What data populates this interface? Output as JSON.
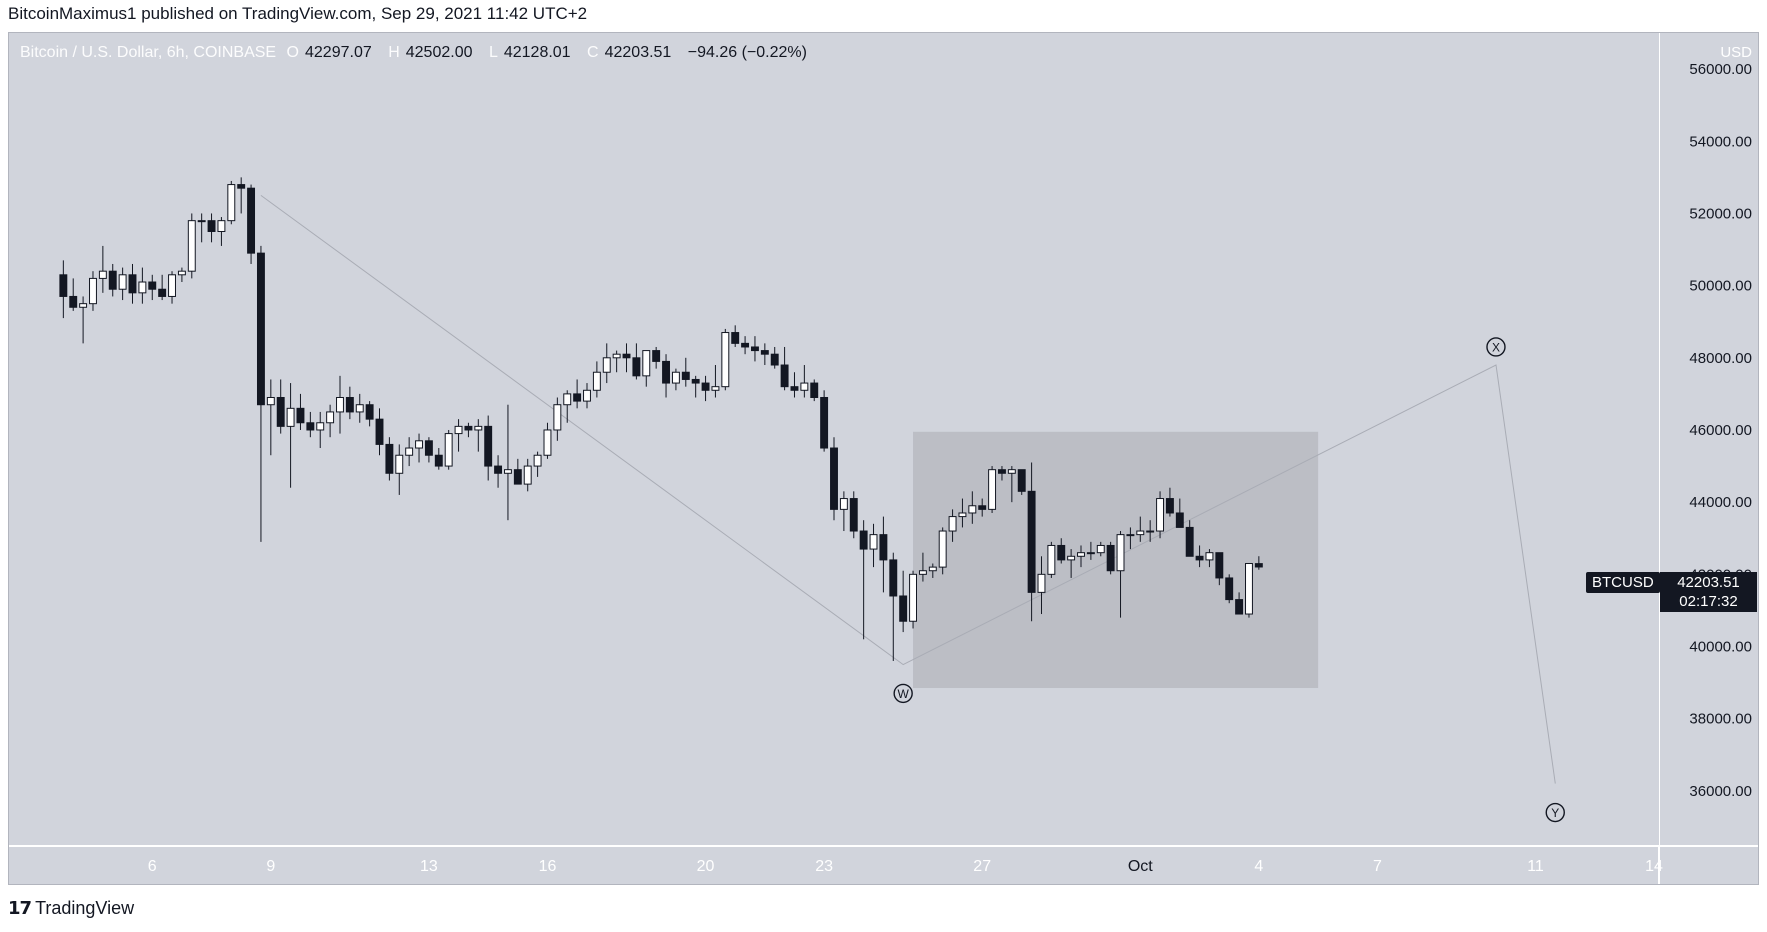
{
  "publisher_line": "BitcoinMaximus1 published on TradingView.com, Sep 29, 2021 11:42 UTC+2",
  "legend": {
    "symbol": "Bitcoin / U.S. Dollar, 6h, COINBASE",
    "o_label": "O",
    "o": "42297.07",
    "h_label": "H",
    "h": "42502.00",
    "l_label": "L",
    "l": "42128.01",
    "c_label": "C",
    "c": "42203.51",
    "change": "−94.26 (−0.22%)"
  },
  "currency": "USD",
  "symbol_tag": "BTCUSD",
  "last_price": "42203.51",
  "countdown": "02:17:32",
  "brand": "TradingView",
  "colors": {
    "background": "#d1d4dc",
    "up": "#ffffff",
    "down": "#131722",
    "box": "#b8bac1"
  },
  "chart_data": {
    "type": "candlestick",
    "title": "Bitcoin / U.S. Dollar, 6h, COINBASE",
    "ylabel": "USD",
    "ylim": [
      34500,
      57000
    ],
    "y_ticks": [
      "56000.00",
      "54000.00",
      "52000.00",
      "50000.00",
      "48000.00",
      "46000.00",
      "44000.00",
      "42000.00",
      "40000.00",
      "38000.00",
      "36000.00"
    ],
    "x_ticks": [
      {
        "label": "6",
        "t": 9
      },
      {
        "label": "9",
        "t": 21
      },
      {
        "label": "13",
        "t": 37
      },
      {
        "label": "16",
        "t": 49
      },
      {
        "label": "20",
        "t": 65
      },
      {
        "label": "23",
        "t": 77
      },
      {
        "label": "27",
        "t": 93
      },
      {
        "label": "Oct",
        "t": 109
      },
      {
        "label": "4",
        "t": 121
      },
      {
        "label": "7",
        "t": 133
      },
      {
        "label": "11",
        "t": 149
      },
      {
        "label": "14",
        "t": 161
      }
    ],
    "x_range": [
      -5.5,
      161.5
    ],
    "candles": [
      {
        "o": 50300,
        "h": 50700,
        "l": 49100,
        "c": 49700
      },
      {
        "o": 49700,
        "h": 50200,
        "l": 49300,
        "c": 49400
      },
      {
        "o": 49400,
        "h": 49700,
        "l": 48400,
        "c": 49500
      },
      {
        "o": 49500,
        "h": 50400,
        "l": 49300,
        "c": 50200
      },
      {
        "o": 50200,
        "h": 51100,
        "l": 49800,
        "c": 50400
      },
      {
        "o": 50400,
        "h": 50600,
        "l": 49700,
        "c": 49900
      },
      {
        "o": 49900,
        "h": 50500,
        "l": 49600,
        "c": 50300
      },
      {
        "o": 50300,
        "h": 50600,
        "l": 49500,
        "c": 49800
      },
      {
        "o": 49800,
        "h": 50500,
        "l": 49500,
        "c": 50100
      },
      {
        "o": 50100,
        "h": 50300,
        "l": 49600,
        "c": 49900
      },
      {
        "o": 49900,
        "h": 50300,
        "l": 49600,
        "c": 49700
      },
      {
        "o": 49700,
        "h": 50400,
        "l": 49500,
        "c": 50300
      },
      {
        "o": 50300,
        "h": 50500,
        "l": 50100,
        "c": 50400
      },
      {
        "o": 50400,
        "h": 52000,
        "l": 50200,
        "c": 51800
      },
      {
        "o": 51800,
        "h": 52000,
        "l": 51200,
        "c": 51800
      },
      {
        "o": 51800,
        "h": 52000,
        "l": 51200,
        "c": 51500
      },
      {
        "o": 51500,
        "h": 51900,
        "l": 51100,
        "c": 51800
      },
      {
        "o": 51800,
        "h": 52900,
        "l": 51700,
        "c": 52800
      },
      {
        "o": 52800,
        "h": 53000,
        "l": 52000,
        "c": 52700
      },
      {
        "o": 52700,
        "h": 52800,
        "l": 50600,
        "c": 50900
      },
      {
        "o": 50900,
        "h": 51100,
        "l": 42900,
        "c": 46700
      },
      {
        "o": 46700,
        "h": 47400,
        "l": 45300,
        "c": 46900
      },
      {
        "o": 46900,
        "h": 47400,
        "l": 45900,
        "c": 46100
      },
      {
        "o": 46100,
        "h": 47300,
        "l": 44400,
        "c": 46600
      },
      {
        "o": 46600,
        "h": 47000,
        "l": 46000,
        "c": 46200
      },
      {
        "o": 46200,
        "h": 46500,
        "l": 45800,
        "c": 46000
      },
      {
        "o": 46000,
        "h": 46500,
        "l": 45500,
        "c": 46200
      },
      {
        "o": 46200,
        "h": 46700,
        "l": 45800,
        "c": 46500
      },
      {
        "o": 46500,
        "h": 47500,
        "l": 45900,
        "c": 46900
      },
      {
        "o": 46900,
        "h": 47200,
        "l": 46300,
        "c": 46500
      },
      {
        "o": 46500,
        "h": 47000,
        "l": 46200,
        "c": 46700
      },
      {
        "o": 46700,
        "h": 46800,
        "l": 46100,
        "c": 46300
      },
      {
        "o": 46300,
        "h": 46600,
        "l": 45300,
        "c": 45600
      },
      {
        "o": 45600,
        "h": 45800,
        "l": 44600,
        "c": 44800
      },
      {
        "o": 44800,
        "h": 45600,
        "l": 44200,
        "c": 45300
      },
      {
        "o": 45300,
        "h": 45800,
        "l": 45000,
        "c": 45500
      },
      {
        "o": 45500,
        "h": 45900,
        "l": 45100,
        "c": 45700
      },
      {
        "o": 45700,
        "h": 45800,
        "l": 45100,
        "c": 45300
      },
      {
        "o": 45300,
        "h": 45500,
        "l": 44900,
        "c": 45000
      },
      {
        "o": 45000,
        "h": 46000,
        "l": 44900,
        "c": 45900
      },
      {
        "o": 45900,
        "h": 46300,
        "l": 45400,
        "c": 46100
      },
      {
        "o": 46100,
        "h": 46200,
        "l": 45800,
        "c": 46000
      },
      {
        "o": 46000,
        "h": 46300,
        "l": 45400,
        "c": 46100
      },
      {
        "o": 46100,
        "h": 46400,
        "l": 44600,
        "c": 45000
      },
      {
        "o": 45000,
        "h": 45300,
        "l": 44400,
        "c": 44800
      },
      {
        "o": 44800,
        "h": 46700,
        "l": 43500,
        "c": 44900
      },
      {
        "o": 44900,
        "h": 45200,
        "l": 44500,
        "c": 44500
      },
      {
        "o": 44500,
        "h": 45200,
        "l": 44300,
        "c": 45000
      },
      {
        "o": 45000,
        "h": 45400,
        "l": 44700,
        "c": 45300
      },
      {
        "o": 45300,
        "h": 46200,
        "l": 45200,
        "c": 46000
      },
      {
        "o": 46000,
        "h": 46900,
        "l": 45700,
        "c": 46700
      },
      {
        "o": 46700,
        "h": 47100,
        "l": 46200,
        "c": 47000
      },
      {
        "o": 47000,
        "h": 47400,
        "l": 46600,
        "c": 46800
      },
      {
        "o": 46800,
        "h": 47300,
        "l": 46600,
        "c": 47100
      },
      {
        "o": 47100,
        "h": 47900,
        "l": 46900,
        "c": 47600
      },
      {
        "o": 47600,
        "h": 48400,
        "l": 47300,
        "c": 48000
      },
      {
        "o": 48000,
        "h": 48200,
        "l": 47600,
        "c": 48100
      },
      {
        "o": 48100,
        "h": 48400,
        "l": 47600,
        "c": 48000
      },
      {
        "o": 48000,
        "h": 48400,
        "l": 47400,
        "c": 47500
      },
      {
        "o": 47500,
        "h": 48200,
        "l": 47200,
        "c": 48200
      },
      {
        "o": 48200,
        "h": 48300,
        "l": 47700,
        "c": 47900
      },
      {
        "o": 47900,
        "h": 48100,
        "l": 46900,
        "c": 47300
      },
      {
        "o": 47300,
        "h": 47700,
        "l": 47100,
        "c": 47600
      },
      {
        "o": 47600,
        "h": 48000,
        "l": 47200,
        "c": 47400
      },
      {
        "o": 47400,
        "h": 47500,
        "l": 46900,
        "c": 47300
      },
      {
        "o": 47300,
        "h": 47500,
        "l": 46800,
        "c": 47100
      },
      {
        "o": 47100,
        "h": 47800,
        "l": 46900,
        "c": 47200
      },
      {
        "o": 47200,
        "h": 48800,
        "l": 47100,
        "c": 48700
      },
      {
        "o": 48700,
        "h": 48900,
        "l": 48300,
        "c": 48400
      },
      {
        "o": 48400,
        "h": 48600,
        "l": 48100,
        "c": 48300
      },
      {
        "o": 48300,
        "h": 48600,
        "l": 47900,
        "c": 48200
      },
      {
        "o": 48200,
        "h": 48400,
        "l": 47800,
        "c": 48100
      },
      {
        "o": 48100,
        "h": 48300,
        "l": 47700,
        "c": 47800
      },
      {
        "o": 47800,
        "h": 48300,
        "l": 47100,
        "c": 47200
      },
      {
        "o": 47200,
        "h": 47600,
        "l": 46900,
        "c": 47100
      },
      {
        "o": 47100,
        "h": 47800,
        "l": 46900,
        "c": 47300
      },
      {
        "o": 47300,
        "h": 47400,
        "l": 46800,
        "c": 46900
      },
      {
        "o": 46900,
        "h": 47100,
        "l": 45400,
        "c": 45500
      },
      {
        "o": 45500,
        "h": 45800,
        "l": 43500,
        "c": 43800
      },
      {
        "o": 43800,
        "h": 44300,
        "l": 43200,
        "c": 44100
      },
      {
        "o": 44100,
        "h": 44300,
        "l": 43000,
        "c": 43200
      },
      {
        "o": 43200,
        "h": 43500,
        "l": 40200,
        "c": 42700
      },
      {
        "o": 42700,
        "h": 43400,
        "l": 42200,
        "c": 43100
      },
      {
        "o": 43100,
        "h": 43600,
        "l": 41500,
        "c": 42400
      },
      {
        "o": 42400,
        "h": 42600,
        "l": 39600,
        "c": 41400
      },
      {
        "o": 41400,
        "h": 42100,
        "l": 40400,
        "c": 40700
      },
      {
        "o": 40700,
        "h": 42100,
        "l": 40500,
        "c": 42000
      },
      {
        "o": 42000,
        "h": 42600,
        "l": 41800,
        "c": 42100
      },
      {
        "o": 42100,
        "h": 42300,
        "l": 41900,
        "c": 42200
      },
      {
        "o": 42200,
        "h": 43300,
        "l": 42000,
        "c": 43200
      },
      {
        "o": 43200,
        "h": 43800,
        "l": 42900,
        "c": 43600
      },
      {
        "o": 43600,
        "h": 44100,
        "l": 43300,
        "c": 43700
      },
      {
        "o": 43700,
        "h": 44300,
        "l": 43400,
        "c": 43900
      },
      {
        "o": 43900,
        "h": 44100,
        "l": 43600,
        "c": 43800
      },
      {
        "o": 43800,
        "h": 45000,
        "l": 43700,
        "c": 44900
      },
      {
        "o": 44900,
        "h": 45000,
        "l": 44600,
        "c": 44800
      },
      {
        "o": 44800,
        "h": 45000,
        "l": 44000,
        "c": 44900
      },
      {
        "o": 44900,
        "h": 44900,
        "l": 44200,
        "c": 44300
      },
      {
        "o": 44300,
        "h": 45100,
        "l": 40700,
        "c": 41500
      },
      {
        "o": 41500,
        "h": 42500,
        "l": 40900,
        "c": 42000
      },
      {
        "o": 42000,
        "h": 42900,
        "l": 41900,
        "c": 42800
      },
      {
        "o": 42800,
        "h": 43000,
        "l": 42300,
        "c": 42400
      },
      {
        "o": 42400,
        "h": 42700,
        "l": 41900,
        "c": 42500
      },
      {
        "o": 42500,
        "h": 42800,
        "l": 42200,
        "c": 42600
      },
      {
        "o": 42600,
        "h": 42900,
        "l": 42400,
        "c": 42600
      },
      {
        "o": 42600,
        "h": 42900,
        "l": 42500,
        "c": 42800
      },
      {
        "o": 42800,
        "h": 42900,
        "l": 42000,
        "c": 42100
      },
      {
        "o": 42100,
        "h": 43200,
        "l": 40800,
        "c": 43100
      },
      {
        "o": 43100,
        "h": 43300,
        "l": 42700,
        "c": 43100
      },
      {
        "o": 43100,
        "h": 43600,
        "l": 42900,
        "c": 43200
      },
      {
        "o": 43200,
        "h": 43500,
        "l": 42900,
        "c": 43200
      },
      {
        "o": 43200,
        "h": 44300,
        "l": 43000,
        "c": 44100
      },
      {
        "o": 44100,
        "h": 44400,
        "l": 43600,
        "c": 43700
      },
      {
        "o": 43700,
        "h": 44100,
        "l": 43300,
        "c": 43300
      },
      {
        "o": 43300,
        "h": 43500,
        "l": 42600,
        "c": 42500
      },
      {
        "o": 42500,
        "h": 42800,
        "l": 42200,
        "c": 42400
      },
      {
        "o": 42400,
        "h": 42700,
        "l": 42200,
        "c": 42600
      },
      {
        "o": 42600,
        "h": 42600,
        "l": 41700,
        "c": 41900
      },
      {
        "o": 41900,
        "h": 42000,
        "l": 41200,
        "c": 41300
      },
      {
        "o": 41300,
        "h": 41500,
        "l": 40900,
        "c": 40900
      },
      {
        "o": 40900,
        "h": 42300,
        "l": 40800,
        "c": 42300
      },
      {
        "o": 42297,
        "h": 42502,
        "l": 42128,
        "c": 42204
      }
    ],
    "wave_labels": [
      "W",
      "X",
      "Y"
    ],
    "wave_path": [
      {
        "t": 20,
        "y": 52500
      },
      {
        "t": 85,
        "y": 39500
      },
      {
        "t": 145,
        "y": 47800
      },
      {
        "t": 151,
        "y": 36200
      }
    ],
    "wave_points": [
      {
        "label": "W",
        "t": 85,
        "y": 38700
      },
      {
        "label": "X",
        "t": 145,
        "y": 48300
      },
      {
        "label": "Y",
        "t": 151,
        "y": 35400
      }
    ],
    "range_box": {
      "t_start": 86,
      "t_end": 127,
      "y_low": 38850,
      "y_high": 45950
    }
  }
}
